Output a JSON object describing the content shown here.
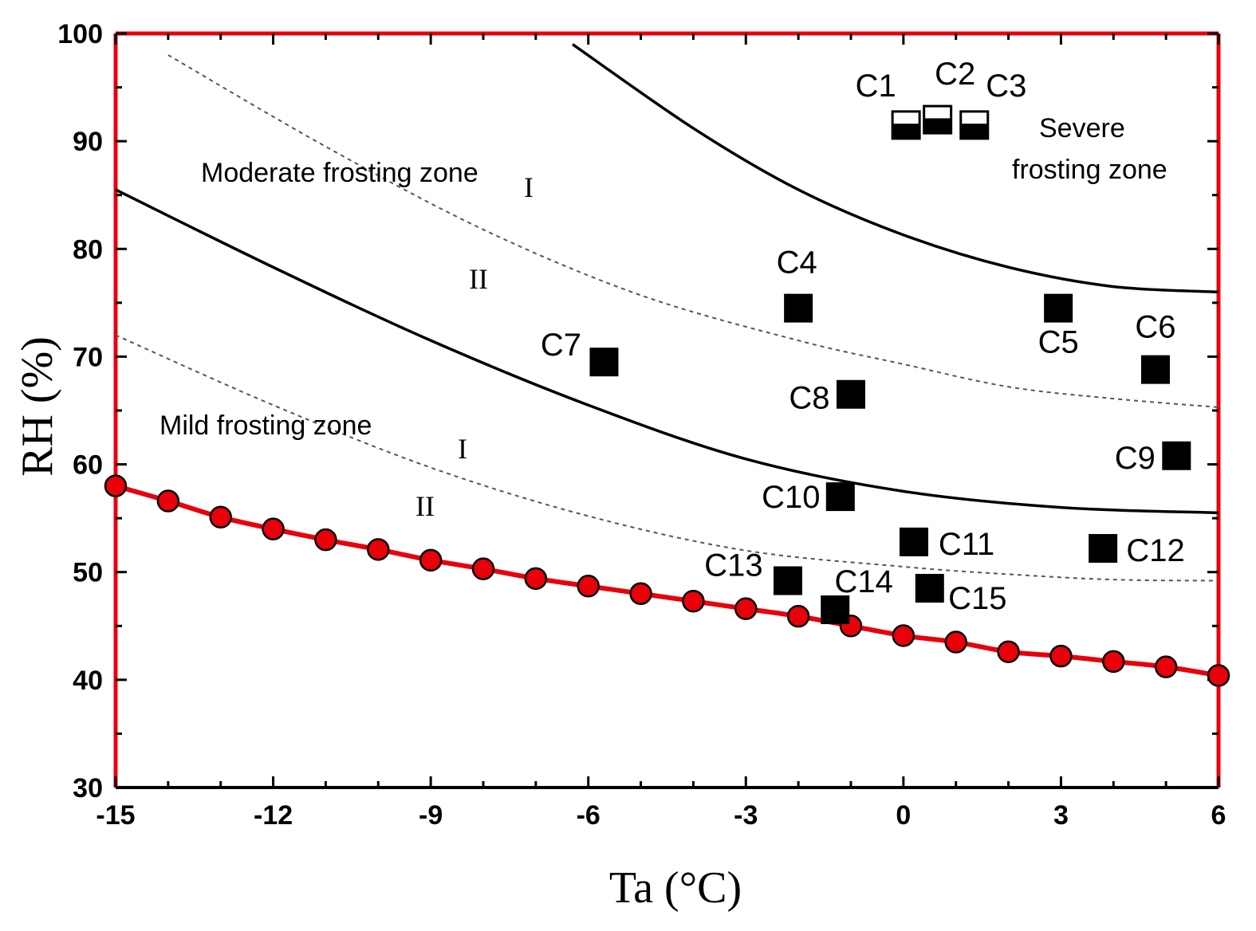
{
  "chart_data": {
    "type": "scatter",
    "title": "",
    "xlabel": "Ta (°C)",
    "ylabel": "RH (%)",
    "xlim": [
      -15,
      6
    ],
    "ylim": [
      30,
      100
    ],
    "xticks": [
      "-15",
      "-12",
      "-9",
      "-6",
      "-3",
      "0",
      "3",
      "6"
    ],
    "yticks": [
      "30",
      "40",
      "50",
      "60",
      "70",
      "80",
      "90",
      "100"
    ],
    "colors": {
      "boundary": "#e8000b",
      "marker_fill": "#e8000b",
      "curve": "#000000",
      "dashed": "#555555",
      "case": "#000000"
    },
    "lower_boundary": {
      "x": [
        -15,
        -14,
        -13,
        -12,
        -11,
        -10,
        -9,
        -8,
        -7,
        -6,
        -5,
        -4,
        -3,
        -2,
        -1,
        0,
        1,
        2,
        3,
        4,
        5,
        6
      ],
      "y": [
        58,
        56.6,
        55.1,
        54,
        53,
        52.1,
        51.1,
        50.3,
        49.4,
        48.7,
        48,
        47.3,
        46.6,
        45.9,
        45,
        44.1,
        43.5,
        42.6,
        42.2,
        41.7,
        41.2,
        40.4
      ]
    },
    "zone_curves": [
      {
        "name": "severe-boundary",
        "style": "solid",
        "x": [
          -6.3,
          -4,
          -2,
          0,
          2,
          4,
          6
        ],
        "y": [
          99,
          91.2,
          85.5,
          81.3,
          78.3,
          76.5,
          76
        ]
      },
      {
        "name": "moderate-boundary",
        "style": "solid",
        "x": [
          -15,
          -12,
          -9,
          -6,
          -3,
          0,
          3,
          6
        ],
        "y": [
          85.5,
          78.3,
          71.5,
          65.5,
          60.5,
          57.5,
          56,
          55.5
        ]
      },
      {
        "name": "moderate-I-II-divider",
        "style": "dashed",
        "x": [
          -14,
          -11,
          -8,
          -5,
          -2,
          0,
          2,
          4,
          6
        ],
        "y": [
          98,
          89.5,
          81.8,
          75.7,
          71.5,
          69.3,
          67.2,
          66.1,
          65.3
        ]
      },
      {
        "name": "mild-I-II-divider",
        "style": "dashed",
        "x": [
          -15,
          -12,
          -9,
          -6,
          -3,
          0,
          2,
          4,
          6
        ],
        "y": [
          72,
          65.5,
          59.7,
          55.2,
          52,
          50.5,
          49.8,
          49.3,
          49.2
        ]
      }
    ],
    "cases": [
      {
        "label": "C1",
        "x": 0.05,
        "y": 91.5,
        "half_filled": true
      },
      {
        "label": "C2",
        "x": 0.65,
        "y": 92,
        "half_filled": true
      },
      {
        "label": "C3",
        "x": 1.35,
        "y": 91.5,
        "half_filled": true
      },
      {
        "label": "C4",
        "x": -2,
        "y": 74.5,
        "half_filled": false
      },
      {
        "label": "C5",
        "x": 2.95,
        "y": 74.5,
        "half_filled": false
      },
      {
        "label": "C6",
        "x": 4.8,
        "y": 68.8,
        "half_filled": false
      },
      {
        "label": "C7",
        "x": -5.7,
        "y": 69.5,
        "half_filled": false
      },
      {
        "label": "C8",
        "x": -1,
        "y": 66.5,
        "half_filled": false
      },
      {
        "label": "C9",
        "x": 5.2,
        "y": 60.8,
        "half_filled": false
      },
      {
        "label": "C10",
        "x": -1.2,
        "y": 57,
        "half_filled": false
      },
      {
        "label": "C11",
        "x": 0.2,
        "y": 52.8,
        "half_filled": false
      },
      {
        "label": "C12",
        "x": 3.8,
        "y": 52.2,
        "half_filled": false
      },
      {
        "label": "C13",
        "x": -2.2,
        "y": 49.2,
        "half_filled": false
      },
      {
        "label": "C14",
        "x": -1.3,
        "y": 46.5,
        "half_filled": false
      },
      {
        "label": "C15",
        "x": 0.5,
        "y": 48.5,
        "half_filled": false
      }
    ],
    "annotations": {
      "moderate_zone": "Moderate frosting zone",
      "mild_zone": "Mild frosting zone",
      "severe_zone_line1": "Severe",
      "severe_zone_line2": "frosting zone",
      "moderate_I": "I",
      "moderate_II": "II",
      "mild_I": "I",
      "mild_II": "II"
    }
  }
}
